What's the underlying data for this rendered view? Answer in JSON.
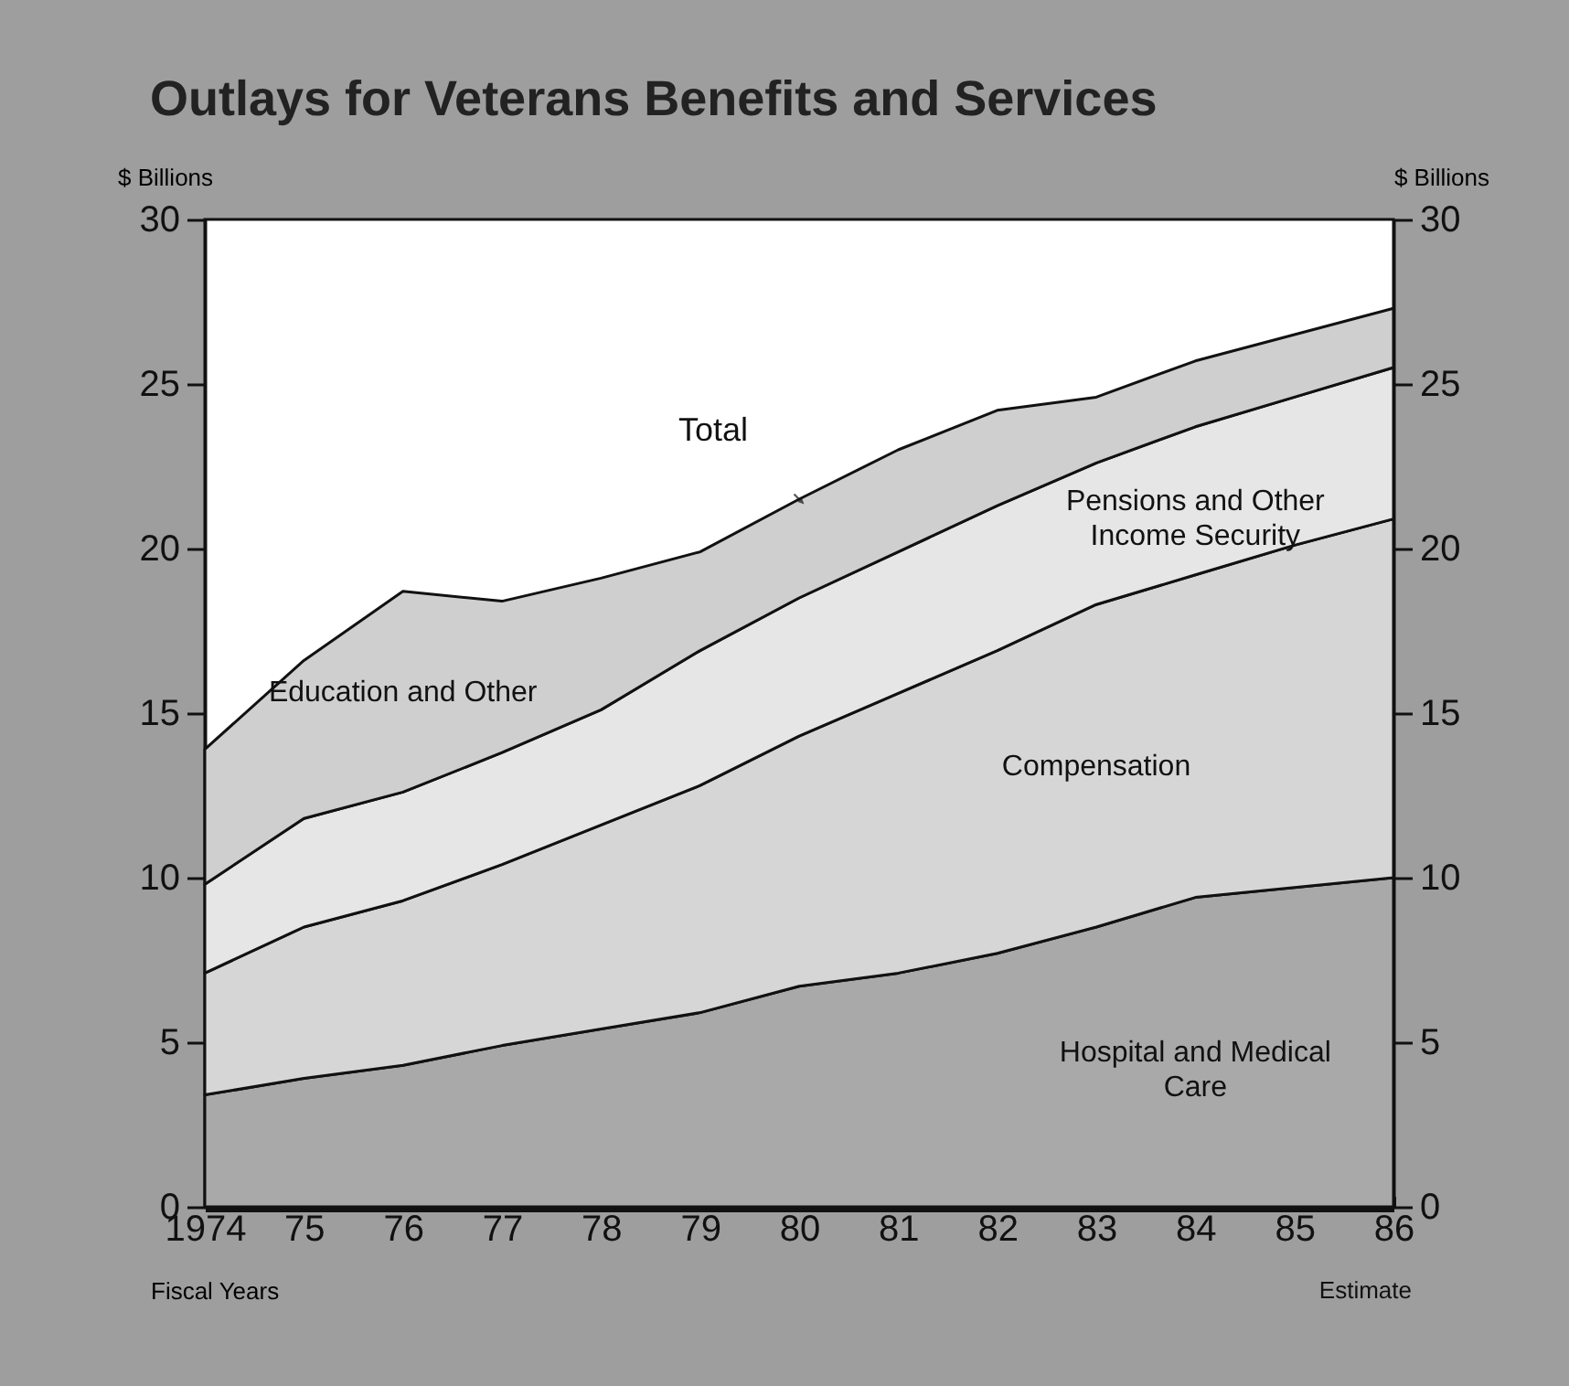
{
  "chart_data": {
    "type": "area",
    "title": "Outlays for Veterans Benefits and Services",
    "xlabel": "Fiscal Years",
    "ylabel": "$ Billions",
    "y2label": "$ Billions",
    "stacked": true,
    "x": [
      1974,
      1975,
      1976,
      1977,
      1978,
      1979,
      1980,
      1981,
      1982,
      1983,
      1984,
      1985,
      1986
    ],
    "series": [
      {
        "name": "Hospital and Medical Care",
        "color": "#a9a9a9",
        "values": [
          3.4,
          3.9,
          4.3,
          4.9,
          5.4,
          5.9,
          6.7,
          7.1,
          7.7,
          8.5,
          9.4,
          9.7,
          10.0
        ]
      },
      {
        "name": "Compensation",
        "color": "#d6d6d6",
        "values": [
          3.7,
          4.6,
          5.0,
          5.5,
          6.2,
          6.9,
          7.6,
          8.5,
          9.2,
          9.8,
          9.8,
          10.4,
          10.9
        ]
      },
      {
        "name": "Pensions and Other Income Security",
        "color": "#e6e6e6",
        "values": [
          2.7,
          3.3,
          3.3,
          3.4,
          3.5,
          4.1,
          4.2,
          4.3,
          4.4,
          4.3,
          4.5,
          4.5,
          4.6
        ]
      },
      {
        "name": "Education and Other",
        "color": "#cfcfcf",
        "values": [
          4.1,
          4.8,
          6.1,
          4.6,
          4.0,
          3.0,
          3.0,
          3.1,
          2.9,
          2.0,
          2.0,
          1.9,
          1.8
        ]
      }
    ],
    "xlim": [
      1974,
      1986
    ],
    "xticks": [
      {
        "value": 1974,
        "label": "1974"
      },
      {
        "value": 1975,
        "label": "75"
      },
      {
        "value": 1976,
        "label": "76"
      },
      {
        "value": 1977,
        "label": "77"
      },
      {
        "value": 1978,
        "label": "78"
      },
      {
        "value": 1979,
        "label": "79"
      },
      {
        "value": 1980,
        "label": "80"
      },
      {
        "value": 1981,
        "label": "81"
      },
      {
        "value": 1982,
        "label": "82"
      },
      {
        "value": 1983,
        "label": "83"
      },
      {
        "value": 1984,
        "label": "84"
      },
      {
        "value": 1985,
        "label": "85"
      },
      {
        "value": 1986,
        "label": "86"
      }
    ],
    "ylim": [
      0,
      30
    ],
    "yticks": [
      0,
      5,
      10,
      15,
      20,
      25,
      30
    ],
    "y2lim": [
      0,
      30
    ],
    "y2ticks": [
      0,
      5,
      10,
      15,
      20,
      25,
      30
    ],
    "annotations": [
      {
        "text": "Total",
        "x": 1980,
        "y": 21.5
      },
      "Estimate"
    ],
    "legend": false
  }
}
